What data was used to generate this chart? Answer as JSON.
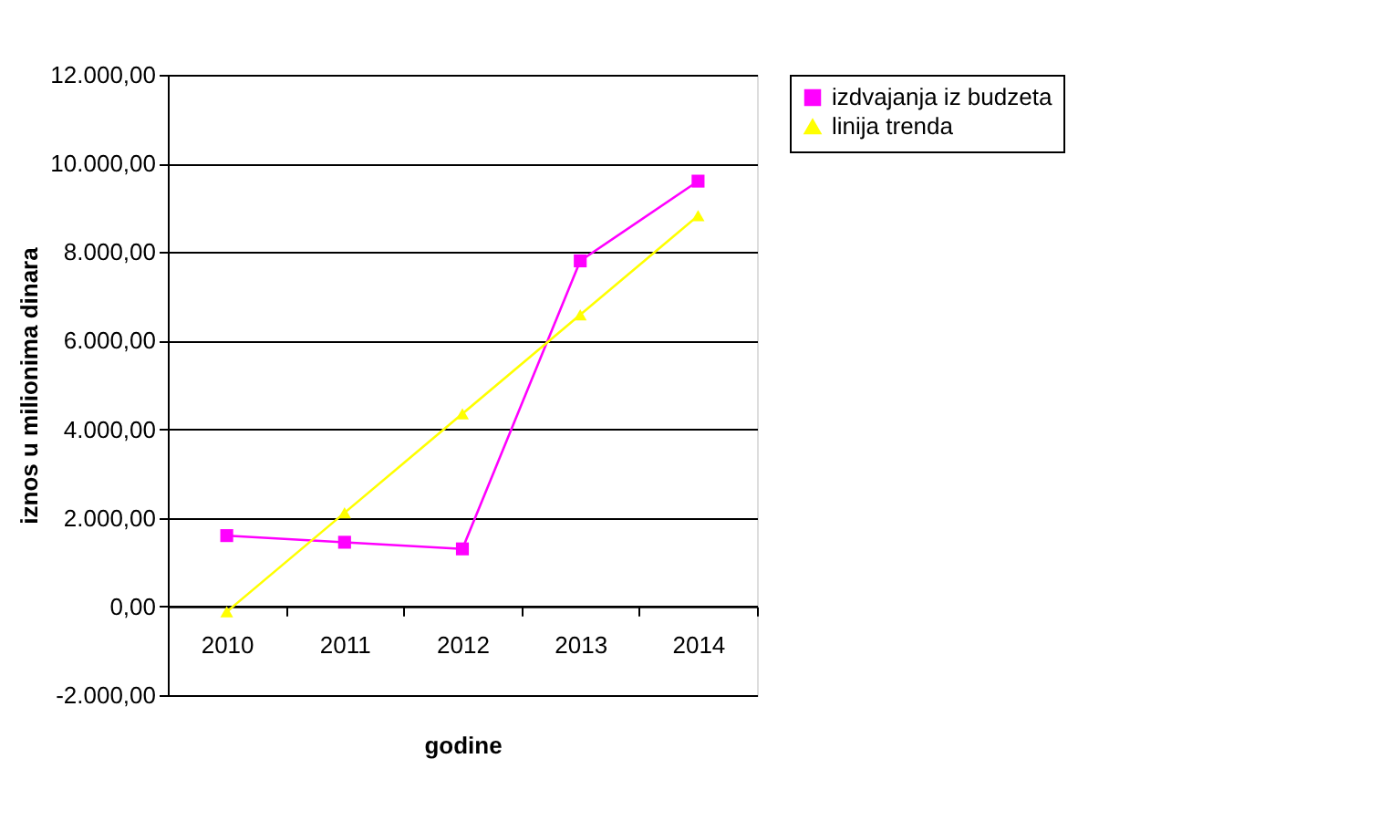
{
  "chart_data": {
    "type": "line",
    "xlabel": "godine",
    "ylabel": "iznos u milionima dinara",
    "categories": [
      "2010",
      "2011",
      "2012",
      "2013",
      "2014"
    ],
    "series": [
      {
        "name": "izdvajanja iz budzeta",
        "color": "#ff00ff",
        "marker": "square",
        "values": [
          1600,
          1450,
          1300,
          7800,
          9600
        ]
      },
      {
        "name": "linija trenda",
        "color": "#ffff00",
        "marker": "triangle",
        "values": [
          -120,
          2115,
          4350,
          6585,
          8820
        ]
      }
    ],
    "ylim": [
      -2000,
      12000
    ],
    "yticks": [
      {
        "value": -2000,
        "label": "-2.000,00"
      },
      {
        "value": 0,
        "label": "0,00"
      },
      {
        "value": 2000,
        "label": "2.000,00"
      },
      {
        "value": 4000,
        "label": "4.000,00"
      },
      {
        "value": 6000,
        "label": "6.000,00"
      },
      {
        "value": 8000,
        "label": "8.000,00"
      },
      {
        "value": 10000,
        "label": "10.000,00"
      },
      {
        "value": 12000,
        "label": "12.000,00"
      }
    ],
    "grid": "y",
    "legend": "right"
  }
}
